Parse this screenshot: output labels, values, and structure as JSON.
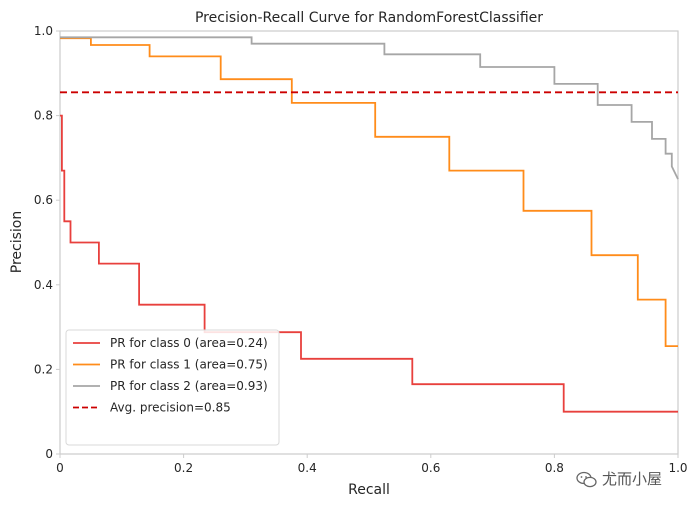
{
  "chart_data": {
    "type": "line",
    "title": "Precision-Recall Curve for RandomForestClassifier",
    "xlabel": "Recall",
    "ylabel": "Precision",
    "xlim": [
      0,
      1
    ],
    "ylim": [
      0,
      1
    ],
    "grid": false,
    "x_ticks": [
      "0",
      "0.2",
      "0.4",
      "0.6",
      "0.8",
      "1.0"
    ],
    "y_ticks": [
      "0",
      "0.2",
      "0.4",
      "0.6",
      "0.8",
      "1.0"
    ],
    "x_tick_values": [
      0,
      0.2,
      0.4,
      0.6,
      0.8,
      1.0
    ],
    "y_tick_values": [
      0,
      0.2,
      0.4,
      0.6,
      0.8,
      1.0
    ],
    "legend_position": "lower-left",
    "series": [
      {
        "name": "PR for class 0 (area=0.24)",
        "color": "#e8403d",
        "style": "solid",
        "recall": [
          0,
          0.003,
          0.003,
          0.007,
          0.007,
          0.017,
          0.017,
          0.063,
          0.063,
          0.128,
          0.128,
          0.234,
          0.234,
          0.39,
          0.39,
          0.57,
          0.57,
          0.815,
          0.815,
          1.0
        ],
        "precision": [
          0.8,
          0.8,
          0.67,
          0.67,
          0.55,
          0.55,
          0.5,
          0.5,
          0.45,
          0.45,
          0.353,
          0.353,
          0.288,
          0.288,
          0.225,
          0.225,
          0.165,
          0.165,
          0.1,
          0.1
        ]
      },
      {
        "name": "PR for class 1 (area=0.75)",
        "color": "#ff8c1a",
        "style": "solid",
        "recall": [
          0,
          0.05,
          0.05,
          0.145,
          0.145,
          0.26,
          0.26,
          0.375,
          0.375,
          0.51,
          0.51,
          0.63,
          0.63,
          0.75,
          0.75,
          0.86,
          0.86,
          0.935,
          0.935,
          0.98,
          0.98,
          1.0
        ],
        "precision": [
          0.983,
          0.983,
          0.967,
          0.967,
          0.94,
          0.94,
          0.886,
          0.886,
          0.83,
          0.83,
          0.75,
          0.75,
          0.67,
          0.67,
          0.575,
          0.575,
          0.47,
          0.47,
          0.365,
          0.365,
          0.255,
          0.255
        ]
      },
      {
        "name": "PR for class 2 (area=0.93)",
        "color": "#a6a6a6",
        "style": "solid",
        "recall": [
          0,
          0.31,
          0.31,
          0.525,
          0.525,
          0.68,
          0.68,
          0.8,
          0.8,
          0.87,
          0.87,
          0.925,
          0.925,
          0.958,
          0.958,
          0.98,
          0.98,
          0.99,
          0.99,
          1.0
        ],
        "precision": [
          0.985,
          0.985,
          0.97,
          0.97,
          0.945,
          0.945,
          0.915,
          0.915,
          0.875,
          0.875,
          0.825,
          0.825,
          0.785,
          0.785,
          0.745,
          0.745,
          0.71,
          0.71,
          0.68,
          0.65
        ]
      },
      {
        "name": "Avg. precision=0.85",
        "color": "#cc0000",
        "style": "dashed",
        "recall": [
          0,
          1
        ],
        "precision": [
          0.855,
          0.855
        ]
      }
    ]
  },
  "watermark": {
    "text": "尤而小屋"
  }
}
